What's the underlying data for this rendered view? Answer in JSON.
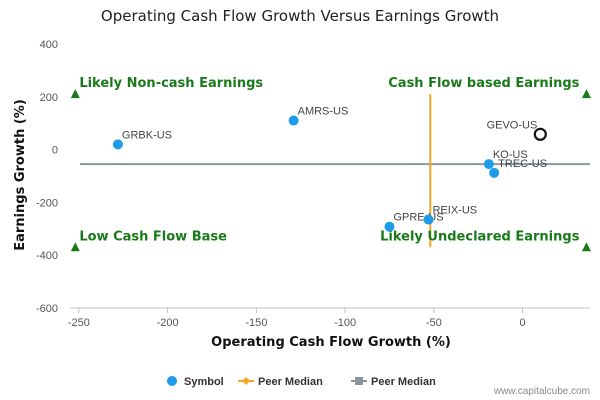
{
  "chart_data": {
    "type": "scatter",
    "title": "Operating Cash Flow Growth Versus Earnings Growth",
    "xlabel": "Operating Cash Flow Growth (%)",
    "ylabel": "Earnings Growth (%)",
    "xlim": [
      -255,
      38
    ],
    "ylim": [
      -600,
      400
    ],
    "x_ticks": [
      -250,
      -200,
      -150,
      -100,
      -50,
      0
    ],
    "y_ticks": [
      400,
      200,
      0,
      -200,
      -400,
      -600
    ],
    "grid": false,
    "legend_position": "bottom",
    "points": [
      {
        "label": "GRBK-US",
        "x": -228,
        "y": 20
      },
      {
        "label": "AMRS-US",
        "x": -129,
        "y": 110
      },
      {
        "label": "GPRE-US",
        "x": -75,
        "y": -292
      },
      {
        "label": "REIX-US",
        "x": -53,
        "y": -265
      },
      {
        "label": "KO-US",
        "x": -19,
        "y": -55
      },
      {
        "label": "TREC-US",
        "x": -16,
        "y": -88
      },
      {
        "label": "GEVO-US",
        "x": 10,
        "y": 58,
        "highlighted": true
      }
    ],
    "peer_median_x": -52,
    "peer_median_y": -55,
    "peer_median_x_range": [
      -370,
      210
    ],
    "quadrant_labels": [
      {
        "text": "Likely Non-cash Earnings",
        "x": -252,
        "y": 210
      },
      {
        "text": "Cash Flow based Earnings",
        "x": 36,
        "y": 210
      },
      {
        "text": "Low Cash Flow Base",
        "x": -252,
        "y": -370
      },
      {
        "text": "Likely Undeclared Earnings",
        "x": 36,
        "y": -370
      }
    ],
    "legend": [
      {
        "label": "Symbol",
        "marker": "circle",
        "color": "#1e9be9"
      },
      {
        "label": "Peer Median",
        "marker": "diamond",
        "color": "#f5a623"
      },
      {
        "label": "Peer Median",
        "marker": "square",
        "color": "#8c95a0"
      }
    ],
    "colors": {
      "symbol": "#1e9be9",
      "median_vertical": "#f5a623",
      "median_horizontal": "#8c95a0",
      "quadrant_text": "#1a7a1a",
      "highlight_marker": "#111111"
    },
    "credit": "www.capitalcube.com"
  }
}
